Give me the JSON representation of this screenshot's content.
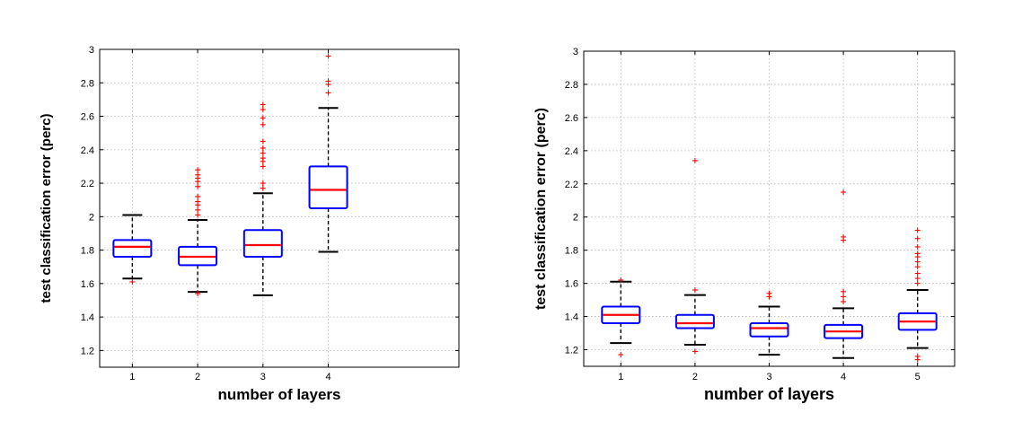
{
  "chart_data": [
    {
      "type": "box",
      "xlabel": "number of layers",
      "ylabel": "test classification error (perc)",
      "categories": [
        "1",
        "2",
        "3",
        "4"
      ],
      "xlim": [
        0.5,
        6.0
      ],
      "ylim": [
        1.1,
        3.0
      ],
      "yticks": [
        "1.2",
        "1.4",
        "1.6",
        "1.8",
        "2",
        "2.2",
        "2.4",
        "2.6",
        "2.8",
        "3"
      ],
      "grid": true,
      "colors": {
        "box": "#0000ff",
        "median": "#ff0000",
        "whisker": "#000000",
        "outlier": "#ff0000"
      },
      "boxes": [
        {
          "category": "1",
          "whisker_low": 1.63,
          "q1": 1.76,
          "median": 1.82,
          "q3": 1.86,
          "whisker_high": 2.01,
          "outliers": [
            1.61
          ]
        },
        {
          "category": "2",
          "whisker_low": 1.55,
          "q1": 1.71,
          "median": 1.76,
          "q3": 1.82,
          "whisker_high": 1.98,
          "outliers": [
            1.54,
            2.01,
            2.04,
            2.07,
            2.09,
            2.12,
            2.18,
            2.21,
            2.23,
            2.25,
            2.28
          ]
        },
        {
          "category": "3",
          "whisker_low": 1.53,
          "q1": 1.76,
          "median": 1.83,
          "q3": 1.92,
          "whisker_high": 2.14,
          "outliers": [
            2.17,
            2.2,
            2.3,
            2.33,
            2.35,
            2.38,
            2.41,
            2.45,
            2.55,
            2.59,
            2.64,
            2.67
          ]
        },
        {
          "category": "4",
          "whisker_low": 1.79,
          "q1": 2.05,
          "median": 2.16,
          "q3": 2.3,
          "whisker_high": 2.65,
          "outliers": [
            2.74,
            2.79,
            2.81,
            2.96
          ]
        }
      ]
    },
    {
      "type": "box",
      "xlabel": "number of layers",
      "ylabel": "test classification error (perc)",
      "categories": [
        "1",
        "2",
        "3",
        "4",
        "5"
      ],
      "xlim": [
        0.5,
        5.5
      ],
      "ylim": [
        1.1,
        3.0
      ],
      "yticks": [
        "1.2",
        "1.4",
        "1.6",
        "1.8",
        "2",
        "2.2",
        "2.4",
        "2.6",
        "2.8",
        "3"
      ],
      "grid": true,
      "colors": {
        "box": "#0000ff",
        "median": "#ff0000",
        "whisker": "#000000",
        "outlier": "#ff0000"
      },
      "boxes": [
        {
          "category": "1",
          "whisker_low": 1.24,
          "q1": 1.36,
          "median": 1.41,
          "q3": 1.46,
          "whisker_high": 1.61,
          "outliers": [
            1.17,
            1.62
          ]
        },
        {
          "category": "2",
          "whisker_low": 1.23,
          "q1": 1.33,
          "median": 1.36,
          "q3": 1.41,
          "whisker_high": 1.53,
          "outliers": [
            1.19,
            1.56,
            2.34
          ]
        },
        {
          "category": "3",
          "whisker_low": 1.17,
          "q1": 1.28,
          "median": 1.33,
          "q3": 1.36,
          "whisker_high": 1.46,
          "outliers": [
            1.52,
            1.54
          ]
        },
        {
          "category": "4",
          "whisker_low": 1.15,
          "q1": 1.27,
          "median": 1.31,
          "q3": 1.35,
          "whisker_high": 1.45,
          "outliers": [
            1.49,
            1.52,
            1.55,
            1.86,
            1.88,
            2.15
          ]
        },
        {
          "category": "5",
          "whisker_low": 1.21,
          "q1": 1.32,
          "median": 1.37,
          "q3": 1.42,
          "whisker_high": 1.56,
          "outliers": [
            1.14,
            1.16,
            1.6,
            1.63,
            1.66,
            1.7,
            1.73,
            1.76,
            1.78,
            1.82,
            1.87,
            1.92
          ]
        }
      ]
    }
  ]
}
